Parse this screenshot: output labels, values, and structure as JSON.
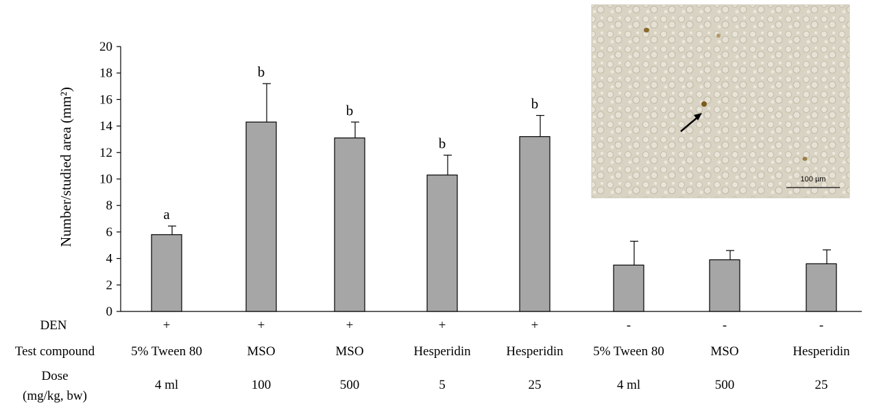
{
  "chart_data": {
    "type": "bar",
    "title": "",
    "xlabel": "",
    "ylabel": "Number/studied area (mm²)",
    "ylim": [
      0,
      20
    ],
    "yticks": [
      0,
      2,
      4,
      6,
      8,
      10,
      12,
      14,
      16,
      18,
      20
    ],
    "grid": false,
    "bar_color": "#a6a6a6",
    "row_labels": {
      "den": "DEN",
      "compound": "Test compound",
      "dose_line1": "Dose",
      "dose_line2": "(mg/kg, bw)"
    },
    "categories": [
      {
        "den": "+",
        "compound": "5% Tween 80",
        "dose": "4 ml"
      },
      {
        "den": "+",
        "compound": "MSO",
        "dose": "100"
      },
      {
        "den": "+",
        "compound": "MSO",
        "dose": "500"
      },
      {
        "den": "+",
        "compound": "Hesperidin",
        "dose": "5"
      },
      {
        "den": "+",
        "compound": "Hesperidin",
        "dose": "25"
      },
      {
        "den": "-",
        "compound": "5% Tween 80",
        "dose": "4 ml"
      },
      {
        "den": "-",
        "compound": "MSO",
        "dose": "500"
      },
      {
        "den": "-",
        "compound": "Hesperidin",
        "dose": "25"
      }
    ],
    "values": [
      5.8,
      14.3,
      13.1,
      10.3,
      13.2,
      3.5,
      3.9,
      3.6
    ],
    "errors": [
      0.65,
      2.9,
      1.2,
      1.5,
      1.6,
      1.8,
      0.7,
      1.05
    ],
    "significance": [
      "a",
      "b",
      "b",
      "b",
      "b",
      "",
      "",
      ""
    ],
    "inset": {
      "image_desc": "micrograph of liver tissue section with stained focus marked by arrow",
      "scale_bar_label": "100 µm"
    }
  }
}
